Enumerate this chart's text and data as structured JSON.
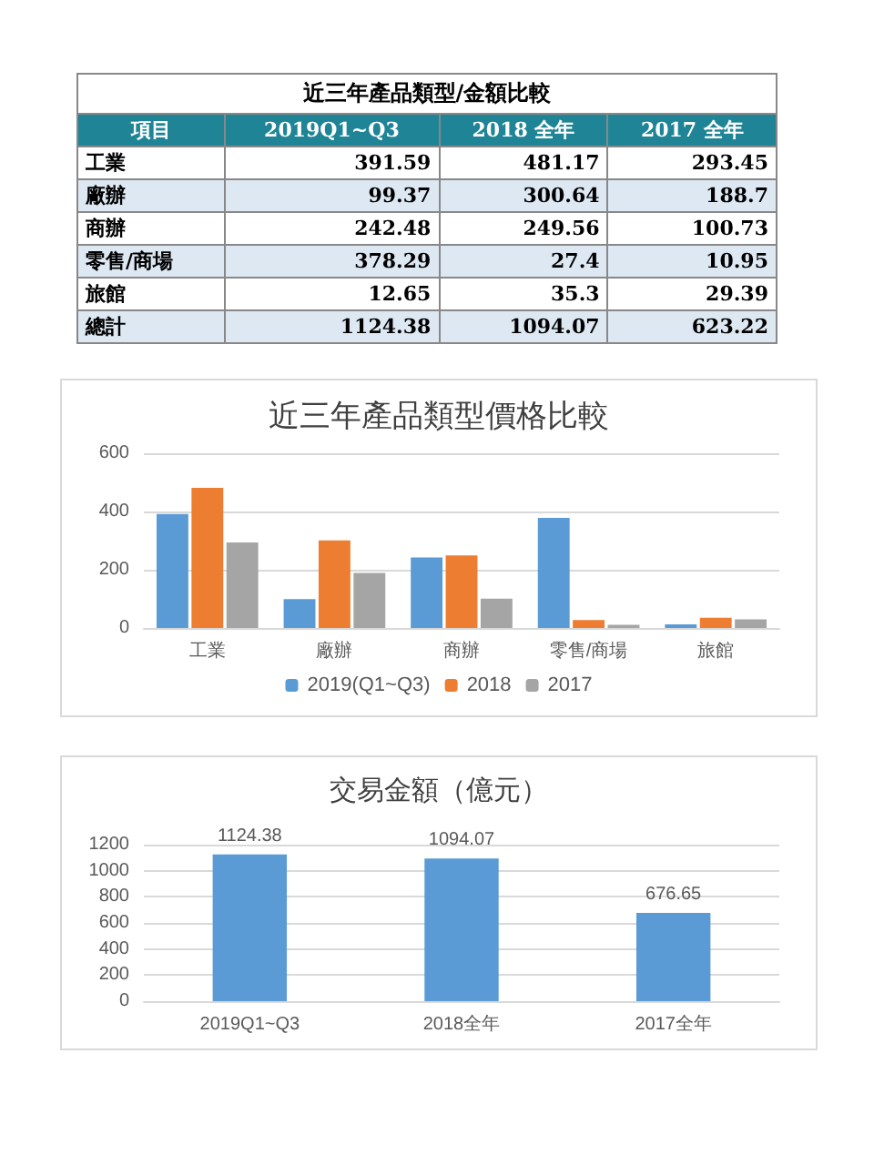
{
  "chart_data": [
    {
      "type": "other",
      "title": "近三年產品類型/金額比較",
      "xlabel": "項目",
      "categories": [
        "工業",
        "廠辦",
        "商辦",
        "零售/商場",
        "旅館",
        "總計"
      ],
      "data_labels": true,
      "series": [
        {
          "name": "2019Q1~Q3",
          "values": [
            391.59,
            99.37,
            242.48,
            378.29,
            12.65,
            1124.38
          ]
        },
        {
          "name": "2018 全年",
          "values": [
            481.17,
            300.64,
            249.56,
            27.4,
            35.3,
            1094.07
          ]
        },
        {
          "name": "2017 全年",
          "values": [
            293.45,
            188.7,
            100.73,
            10.95,
            29.39,
            623.22
          ]
        }
      ]
    },
    {
      "type": "bar",
      "title": "近三年產品類型價格比較",
      "categories": [
        "工業",
        "廠辦",
        "商辦",
        "零售/商場",
        "旅館"
      ],
      "ylim": [
        0,
        600
      ],
      "yticks": [
        0,
        200,
        400,
        600
      ],
      "grid": "y",
      "legend": "bottom",
      "series": [
        {
          "name": "2019(Q1~Q3)",
          "color": "#5b9bd5",
          "values": [
            391.59,
            99.37,
            242.48,
            378.29,
            12.65
          ]
        },
        {
          "name": "2018",
          "color": "#ed7d31",
          "values": [
            481.17,
            300.64,
            249.56,
            27.4,
            35.3
          ]
        },
        {
          "name": "2017",
          "color": "#a5a5a5",
          "values": [
            293.45,
            188.7,
            100.73,
            10.95,
            29.39
          ]
        }
      ]
    },
    {
      "type": "bar",
      "title": "交易金額（億元）",
      "categories": [
        "2019Q1~Q3",
        "2018全年",
        "2017全年"
      ],
      "ylim": [
        0,
        1200
      ],
      "yticks": [
        0,
        200,
        400,
        600,
        800,
        1000,
        1200
      ],
      "grid": "y",
      "data_labels": true,
      "series": [
        {
          "color": "#5b9bd5",
          "values": [
            1124.38,
            1094.07,
            676.65
          ]
        }
      ]
    }
  ]
}
